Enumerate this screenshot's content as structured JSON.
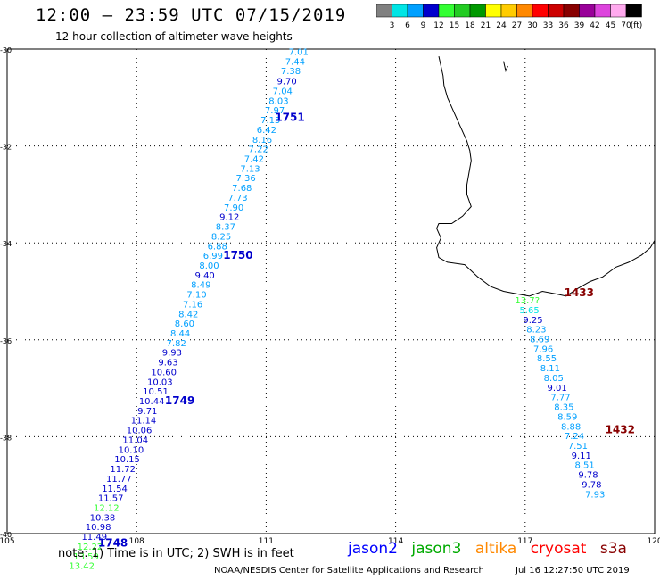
{
  "header": {
    "title": "12:00 – 23:59 UTC 07/15/2019",
    "subtitle": "12 hour collection of altimeter wave heights"
  },
  "scale": {
    "colors": [
      "#808080",
      "#00e5e5",
      "#00a0ff",
      "#0000cc",
      "#33ff33",
      "#22cc22",
      "#009900",
      "#ffff00",
      "#ffcc00",
      "#ff8800",
      "#ff0000",
      "#cc0000",
      "#880000",
      "#990099",
      "#dd44dd",
      "#ffaaee",
      "#000000"
    ],
    "labels": [
      "3",
      "6",
      "9",
      "12",
      "15",
      "18",
      "21",
      "24",
      "27",
      "30",
      "33",
      "36",
      "39",
      "42",
      "45",
      "70"
    ],
    "unit": "(ft)"
  },
  "map": {
    "lon_ticks": [
      "105",
      "108",
      "111",
      "114",
      "117",
      "120"
    ],
    "lat_ticks": [
      "-30",
      "-32",
      "-34",
      "-36",
      "-38",
      "-40"
    ],
    "lon_range": [
      105,
      120
    ],
    "lat_range": [
      -30,
      -40
    ],
    "tracks": [
      {
        "id": "1751",
        "points": [
          {
            "lon": 111.75,
            "lat": -30.12,
            "v": "7.01",
            "c": "#00a0ff"
          },
          {
            "lon": 111.67,
            "lat": -30.32,
            "v": "7.44",
            "c": "#00a0ff"
          },
          {
            "lon": 111.57,
            "lat": -30.52,
            "v": "7.38",
            "c": "#00a0ff"
          },
          {
            "lon": 111.48,
            "lat": -30.73,
            "v": "9.70",
            "c": "#0000cc"
          },
          {
            "lon": 111.38,
            "lat": -30.93,
            "v": "7.04",
            "c": "#00a0ff"
          },
          {
            "lon": 111.29,
            "lat": -31.13,
            "v": "8.03",
            "c": "#00a0ff"
          },
          {
            "lon": 111.2,
            "lat": -31.33,
            "v": "7.97",
            "c": "#00a0ff"
          },
          {
            "lon": 111.1,
            "lat": -31.53,
            "v": "7.15",
            "c": "#00a0ff"
          },
          {
            "lon": 111.01,
            "lat": -31.73,
            "v": "6.42",
            "c": "#00a0ff"
          },
          {
            "lon": 110.91,
            "lat": -31.93,
            "v": "8.16",
            "c": "#00a0ff"
          },
          {
            "lon": 110.82,
            "lat": -32.13,
            "v": "7.22",
            "c": "#00a0ff"
          },
          {
            "lon": 110.72,
            "lat": -32.33,
            "v": "7.42",
            "c": "#00a0ff"
          },
          {
            "lon": 110.63,
            "lat": -32.53,
            "v": "7.13",
            "c": "#00a0ff"
          },
          {
            "lon": 110.53,
            "lat": -32.73,
            "v": "7.36",
            "c": "#00a0ff"
          },
          {
            "lon": 110.44,
            "lat": -32.93,
            "v": "7.68",
            "c": "#00a0ff"
          },
          {
            "lon": 110.34,
            "lat": -33.13,
            "v": "7.73",
            "c": "#00a0ff"
          },
          {
            "lon": 110.25,
            "lat": -33.33,
            "v": "7.90",
            "c": "#00a0ff"
          },
          {
            "lon": 110.15,
            "lat": -33.53,
            "v": "9.12",
            "c": "#0000cc"
          },
          {
            "lon": 110.06,
            "lat": -33.73,
            "v": "8.37",
            "c": "#00a0ff"
          },
          {
            "lon": 109.96,
            "lat": -33.93,
            "v": "8.25",
            "c": "#00a0ff"
          },
          {
            "lon": 109.87,
            "lat": -34.13,
            "v": "6.88",
            "c": "#00a0ff"
          },
          {
            "lon": 109.77,
            "lat": -34.33,
            "v": "6.99",
            "c": "#00a0ff"
          },
          {
            "lon": 109.68,
            "lat": -34.53,
            "v": "8.00",
            "c": "#00a0ff"
          }
        ]
      },
      {
        "id": "1750",
        "points": [
          {
            "lon": 109.58,
            "lat": -34.73,
            "v": "9.40",
            "c": "#0000cc"
          },
          {
            "lon": 109.49,
            "lat": -34.93,
            "v": "8.49",
            "c": "#00a0ff"
          },
          {
            "lon": 109.39,
            "lat": -35.13,
            "v": "7.10",
            "c": "#00a0ff"
          },
          {
            "lon": 109.3,
            "lat": -35.33,
            "v": "7.16",
            "c": "#00a0ff"
          },
          {
            "lon": 109.2,
            "lat": -35.53,
            "v": "8.42",
            "c": "#00a0ff"
          },
          {
            "lon": 109.11,
            "lat": -35.73,
            "v": "8.60",
            "c": "#00a0ff"
          },
          {
            "lon": 109.01,
            "lat": -35.93,
            "v": "8.44",
            "c": "#00a0ff"
          },
          {
            "lon": 108.92,
            "lat": -36.13,
            "v": "7.82",
            "c": "#00a0ff"
          },
          {
            "lon": 108.82,
            "lat": -36.33,
            "v": "9.93",
            "c": "#0000cc"
          },
          {
            "lon": 108.73,
            "lat": -36.53,
            "v": "9.63",
            "c": "#0000cc"
          },
          {
            "lon": 108.63,
            "lat": -36.73,
            "v": "10.60",
            "c": "#0000cc"
          },
          {
            "lon": 108.54,
            "lat": -36.93,
            "v": "10.03",
            "c": "#0000cc"
          },
          {
            "lon": 108.44,
            "lat": -37.13,
            "v": "10.51",
            "c": "#0000cc"
          },
          {
            "lon": 108.35,
            "lat": -37.33,
            "v": "10.44",
            "c": "#0000cc"
          },
          {
            "lon": 108.25,
            "lat": -37.53,
            "v": "9.71",
            "c": "#0000cc"
          }
        ]
      },
      {
        "id": "1749",
        "points": [
          {
            "lon": 108.16,
            "lat": -37.73,
            "v": "11.14",
            "c": "#0000cc"
          },
          {
            "lon": 108.06,
            "lat": -37.93,
            "v": "10.06",
            "c": "#0000cc"
          },
          {
            "lon": 107.97,
            "lat": -38.13,
            "v": "11.04",
            "c": "#0000cc"
          },
          {
            "lon": 107.87,
            "lat": -38.33,
            "v": "10.10",
            "c": "#0000cc"
          },
          {
            "lon": 107.78,
            "lat": -38.53,
            "v": "10.15",
            "c": "#0000cc"
          },
          {
            "lon": 107.68,
            "lat": -38.73,
            "v": "11.72",
            "c": "#0000cc"
          },
          {
            "lon": 107.59,
            "lat": -38.93,
            "v": "11.77",
            "c": "#0000cc"
          },
          {
            "lon": 107.49,
            "lat": -39.13,
            "v": "11.54",
            "c": "#0000cc"
          },
          {
            "lon": 107.4,
            "lat": -39.33,
            "v": "11.57",
            "c": "#0000cc"
          },
          {
            "lon": 107.3,
            "lat": -39.53,
            "v": "12.12",
            "c": "#33ff33"
          },
          {
            "lon": 107.21,
            "lat": -39.73,
            "v": "10.38",
            "c": "#0000cc"
          },
          {
            "lon": 107.11,
            "lat": -39.93,
            "v": "10.98",
            "c": "#0000cc"
          },
          {
            "lon": 107.02,
            "lat": -40.13,
            "v": "11.49",
            "c": "#0000cc"
          }
        ]
      },
      {
        "id": "1748",
        "points": [
          {
            "lon": 106.92,
            "lat": -40.33,
            "v": "12.22",
            "c": "#33ff33"
          },
          {
            "lon": 106.83,
            "lat": -40.53,
            "v": "13.59",
            "c": "#33ff33"
          },
          {
            "lon": 106.73,
            "lat": -40.73,
            "v": "13.42",
            "c": "#33ff33"
          }
        ]
      },
      {
        "id": "1433",
        "points": [
          {
            "lon": 117.05,
            "lat": -35.25,
            "v": "13.7?",
            "c": "#33ff33"
          },
          {
            "lon": 117.1,
            "lat": -35.45,
            "v": "5.65",
            "c": "#00e5e5"
          },
          {
            "lon": 117.18,
            "lat": -35.65,
            "v": "9.25",
            "c": "#0000cc"
          },
          {
            "lon": 117.26,
            "lat": -35.85,
            "v": "8.23",
            "c": "#00a0ff"
          },
          {
            "lon": 117.34,
            "lat": -36.05,
            "v": "8.69",
            "c": "#00a0ff"
          },
          {
            "lon": 117.42,
            "lat": -36.25,
            "v": "7.96",
            "c": "#00a0ff"
          },
          {
            "lon": 117.5,
            "lat": -36.45,
            "v": "8.55",
            "c": "#00a0ff"
          },
          {
            "lon": 117.58,
            "lat": -36.65,
            "v": "8.11",
            "c": "#00a0ff"
          },
          {
            "lon": 117.66,
            "lat": -36.85,
            "v": "8.05",
            "c": "#00a0ff"
          },
          {
            "lon": 117.74,
            "lat": -37.05,
            "v": "9.01",
            "c": "#0000cc"
          },
          {
            "lon": 117.82,
            "lat": -37.25,
            "v": "7.77",
            "c": "#00a0ff"
          },
          {
            "lon": 117.9,
            "lat": -37.45,
            "v": "8.35",
            "c": "#00a0ff"
          },
          {
            "lon": 117.98,
            "lat": -37.65,
            "v": "8.59",
            "c": "#00a0ff"
          },
          {
            "lon": 118.06,
            "lat": -37.85,
            "v": "8.88",
            "c": "#00a0ff"
          }
        ]
      },
      {
        "id": "1432",
        "points": [
          {
            "lon": 118.14,
            "lat": -38.05,
            "v": "7.24",
            "c": "#00a0ff"
          },
          {
            "lon": 118.22,
            "lat": -38.25,
            "v": "7.51",
            "c": "#00a0ff"
          },
          {
            "lon": 118.3,
            "lat": -38.45,
            "v": "9.11",
            "c": "#0000cc"
          },
          {
            "lon": 118.38,
            "lat": -38.65,
            "v": "8.51",
            "c": "#00a0ff"
          },
          {
            "lon": 118.46,
            "lat": -38.85,
            "v": "9.78",
            "c": "#0000cc"
          },
          {
            "lon": 118.54,
            "lat": -39.05,
            "v": "9.78",
            "c": "#0000cc"
          },
          {
            "lon": 118.62,
            "lat": -39.25,
            "v": "7.93",
            "c": "#00a0ff"
          }
        ]
      }
    ],
    "pass_labels": [
      {
        "text": "1751",
        "lon": 111.55,
        "lat": -31.48,
        "color": "#0000cc"
      },
      {
        "text": "1750",
        "lon": 110.35,
        "lat": -34.33,
        "color": "#0000cc"
      },
      {
        "text": "1749",
        "lon": 109.0,
        "lat": -37.33,
        "color": "#0000cc"
      },
      {
        "text": "1748",
        "lon": 107.45,
        "lat": -40.27,
        "color": "#0000cc"
      },
      {
        "text": "1433",
        "lon": 118.25,
        "lat": -35.1,
        "color": "#880000"
      },
      {
        "text": "1432",
        "lon": 119.2,
        "lat": -37.93,
        "color": "#880000"
      }
    ]
  },
  "footer": {
    "note": "note:  1) Time is in UTC;  2) SWH is in feet",
    "satellites": [
      {
        "name": "jason2",
        "color": "#0000ff"
      },
      {
        "name": "jason3",
        "color": "#00aa00"
      },
      {
        "name": "altika",
        "color": "#ff8800"
      },
      {
        "name": "cryosat",
        "color": "#ff0000"
      },
      {
        "name": "s3a",
        "color": "#880000"
      }
    ],
    "credit": "NOAA/NESDIS Center for Satellite Applications and Research",
    "timestamp": "Jul 16 12:27:50 UTC 2019"
  }
}
